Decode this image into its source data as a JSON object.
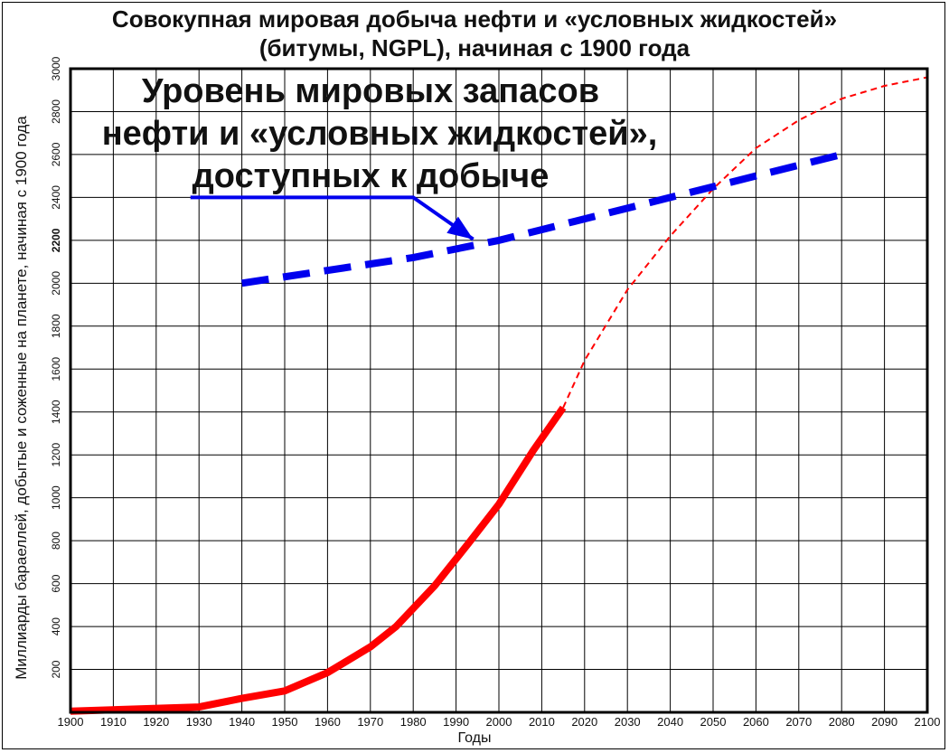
{
  "chart_data": {
    "type": "line",
    "title_line1": "Совокупная мировая добыча нефти и «условных жидкостей»",
    "title_line2": "(битумы,  NGPL), начиная с 1900 года",
    "xlabel": "Годы",
    "ylabel": "Миллиарды бараеллей, добытые и соженные на планете, начиная с 1900 года",
    "xlim": [
      1900,
      2100
    ],
    "ylim": [
      0,
      3000
    ],
    "x_ticks": [
      "1900",
      "1910",
      "1920",
      "1930",
      "1940",
      "1950",
      "1960",
      "1970",
      "1980",
      "1990",
      "2000",
      "2010",
      "2020",
      "2030",
      "2040",
      "2050",
      "2060",
      "2070",
      "2080",
      "2090",
      "2100"
    ],
    "y_ticks": [
      "200",
      "400",
      "600",
      "800",
      "1000",
      "1200",
      "1400",
      "1600",
      "1800",
      "2000",
      "2200",
      "2400",
      "2600",
      "2800",
      "3000"
    ],
    "y_tick_bold": "2200",
    "grid": true,
    "annotation_lines": [
      "Уровень мировых запасов",
      "нефти и «условных жидкостей»,",
      "доступных к добыче"
    ],
    "series": [
      {
        "style": "solid",
        "color": "#ff0000",
        "x": [
          1900,
          1930,
          1940,
          1950,
          1960,
          1970,
          1976,
          1985,
          1993,
          2000,
          2008,
          2015
        ],
        "y": [
          5,
          25,
          65,
          100,
          185,
          305,
          400,
          590,
          790,
          970,
          1220,
          1420
        ]
      },
      {
        "style": "dashed",
        "color": "#ff0000",
        "x": [
          2015,
          2020,
          2030,
          2040,
          2050,
          2060,
          2070,
          2080,
          2090,
          2100
        ],
        "y": [
          1420,
          1640,
          1970,
          2220,
          2440,
          2630,
          2760,
          2860,
          2920,
          2960
        ]
      },
      {
        "style": "dashed",
        "color": "#0000ee",
        "x": [
          1940,
          1980,
          2000,
          2040,
          2080
        ],
        "y": [
          2000,
          2120,
          2200,
          2400,
          2600
        ]
      }
    ],
    "arrow": {
      "color": "#0000ee",
      "path_x": [
        1928,
        1980,
        1994
      ],
      "path_y": [
        2400,
        2400,
        2205
      ]
    }
  }
}
